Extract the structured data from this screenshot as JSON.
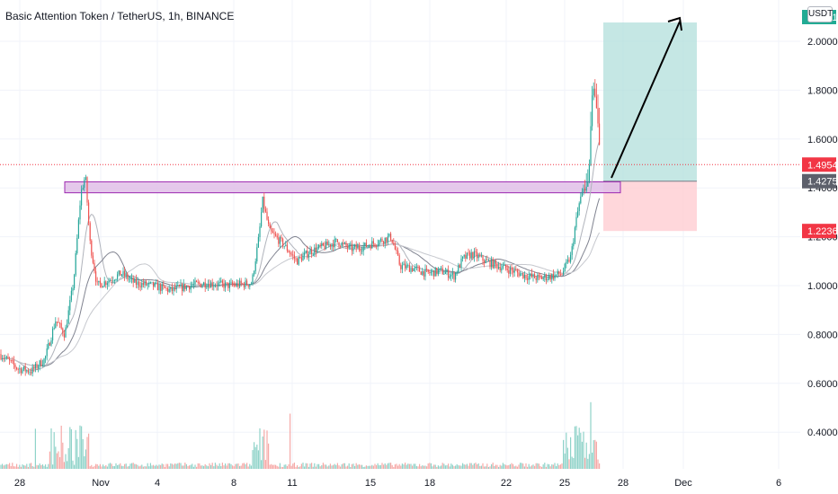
{
  "chart_data": {
    "type": "candlestick",
    "title": "Basic Attention Token / TetherUS, 1h, BINANCE",
    "currency_button": "USDT",
    "y_axis": {
      "ylim": [
        0.25,
        2.1
      ],
      "ticks": [
        "0.4000",
        "0.6000",
        "0.8000",
        "1.0000",
        "1.2000",
        "1.4000",
        "1.6000",
        "1.8000",
        "2.0000"
      ],
      "tick_values": [
        0.4,
        0.6,
        0.8,
        1.0,
        1.2,
        1.4,
        1.6,
        1.8,
        2.0
      ]
    },
    "x_axis": {
      "ticks": [
        "28",
        "Nov",
        "4",
        "8",
        "11",
        "15",
        "18",
        "22",
        "25",
        "28",
        "Dec",
        "6"
      ]
    },
    "price_labels": {
      "target": {
        "text": "2.0771",
        "value": 2.0771,
        "color": "#22ab94"
      },
      "current": {
        "text": "1.4954",
        "value": 1.4954,
        "color": "#f23645"
      },
      "entry": {
        "text": "1.4275",
        "value": 1.4275,
        "color": "#5d606b"
      },
      "stop": {
        "text": "1.2236",
        "value": 1.2236,
        "color": "#f23645"
      }
    },
    "resistance_zone": {
      "low": 1.38,
      "high": 1.425,
      "color": "#9c27b0"
    },
    "long_position": {
      "entry": 1.4275,
      "target": 2.0771,
      "stop": 1.2236,
      "profit_color": "#b2dfdb",
      "loss_color": "#ffcdd2"
    },
    "price_path": [
      [
        0,
        0.72
      ],
      [
        20,
        0.66
      ],
      [
        35,
        0.65
      ],
      [
        50,
        0.7
      ],
      [
        62,
        0.86
      ],
      [
        72,
        0.8
      ],
      [
        82,
        1.02
      ],
      [
        90,
        1.38
      ],
      [
        95,
        1.45
      ],
      [
        100,
        1.18
      ],
      [
        108,
        1.0
      ],
      [
        120,
        1.02
      ],
      [
        135,
        1.05
      ],
      [
        150,
        1.01
      ],
      [
        170,
        1.0
      ],
      [
        190,
        0.98
      ],
      [
        210,
        1.0
      ],
      [
        230,
        1.01
      ],
      [
        255,
        1.0
      ],
      [
        280,
        1.01
      ],
      [
        288,
        1.2
      ],
      [
        292,
        1.35
      ],
      [
        300,
        1.22
      ],
      [
        315,
        1.17
      ],
      [
        330,
        1.1
      ],
      [
        345,
        1.14
      ],
      [
        360,
        1.16
      ],
      [
        375,
        1.18
      ],
      [
        390,
        1.15
      ],
      [
        405,
        1.16
      ],
      [
        420,
        1.18
      ],
      [
        435,
        1.2
      ],
      [
        445,
        1.08
      ],
      [
        460,
        1.07
      ],
      [
        475,
        1.05
      ],
      [
        490,
        1.06
      ],
      [
        505,
        1.04
      ],
      [
        515,
        1.11
      ],
      [
        525,
        1.13
      ],
      [
        540,
        1.1
      ],
      [
        555,
        1.08
      ],
      [
        570,
        1.06
      ],
      [
        585,
        1.04
      ],
      [
        600,
        1.03
      ],
      [
        615,
        1.04
      ],
      [
        625,
        1.05
      ],
      [
        635,
        1.12
      ],
      [
        640,
        1.25
      ],
      [
        645,
        1.35
      ],
      [
        650,
        1.4
      ],
      [
        655,
        1.45
      ],
      [
        658,
        1.75
      ],
      [
        661,
        1.82
      ],
      [
        664,
        1.7
      ],
      [
        667,
        1.55
      ],
      [
        670,
        1.5
      ]
    ]
  }
}
